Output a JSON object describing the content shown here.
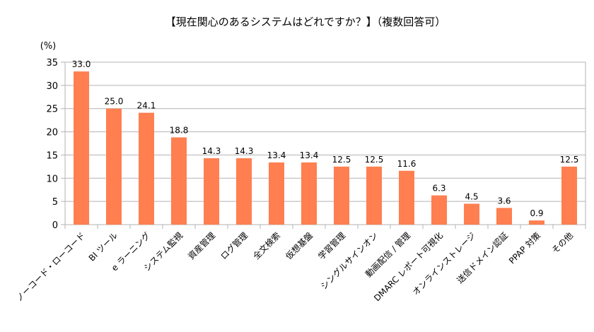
{
  "chart_data": {
    "type": "bar",
    "title": "【現在関心のあるシステムはどれですか？】（複数回答可）",
    "ylabel": "(%)",
    "xlabel": "",
    "categories": [
      "ノーコード・ローコード",
      "BI ツール",
      "e ラーニング",
      "システム監視",
      "資産管理",
      "ログ管理",
      "全文検索",
      "仮想基盤",
      "学習管理",
      "シングルサインオン",
      "動画配信 / 管理",
      "DMARC レポート可視化",
      "オンラインストレージ",
      "送信ドメイン認証",
      "PPAP 対策",
      "その他"
    ],
    "values": [
      33.0,
      25.0,
      24.1,
      18.8,
      14.3,
      14.3,
      13.4,
      13.4,
      12.5,
      12.5,
      11.6,
      6.3,
      4.5,
      3.6,
      0.9,
      12.5
    ],
    "value_labels": [
      "33.0",
      "25.0",
      "24.1",
      "18.8",
      "14.3",
      "14.3",
      "13.4",
      "13.4",
      "12.5",
      "12.5",
      "11.6",
      "6.3",
      "4.5",
      "3.6",
      "0.9",
      "12.5"
    ],
    "ylim": [
      0,
      35
    ],
    "yticks": [
      0,
      5,
      10,
      15,
      20,
      25,
      30,
      35
    ],
    "grid": true,
    "legend": "none",
    "bar_color": "#FF7F50",
    "grid_color": "#b3b3b3",
    "axis_color": "#b3b3b3"
  }
}
